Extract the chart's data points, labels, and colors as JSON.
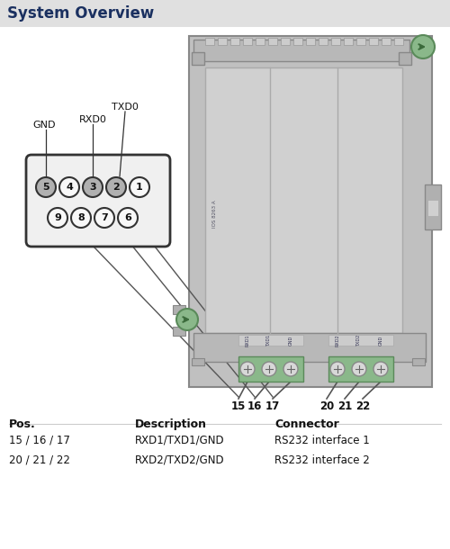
{
  "title": "System Overview",
  "title_bg": "#e0e0e0",
  "title_color": "#1a3060",
  "bg_color": "#ffffff",
  "device_gray": "#c0c0c0",
  "device_light": "#d4d4d4",
  "device_dark": "#a0a0a0",
  "device_border": "#888888",
  "green_fill": "#8ab88a",
  "green_border": "#5a8a5a",
  "green_knob": "#6a9a6a",
  "pin_top": [
    [
      "5",
      true
    ],
    [
      "4",
      false
    ],
    [
      "3",
      true
    ],
    [
      "2",
      true
    ],
    [
      "1",
      false
    ]
  ],
  "pin_bot": [
    [
      "9",
      false
    ],
    [
      "8",
      false
    ],
    [
      "7",
      false
    ],
    [
      "6",
      false
    ]
  ],
  "pin_labels_top": [
    "GND",
    "",
    "RXD0",
    "TXD0",
    ""
  ],
  "terminal_labels_1": [
    "RXD1",
    "TXD1",
    "GND"
  ],
  "terminal_labels_2": [
    "RXD2",
    "TXD2",
    "GND"
  ],
  "wire_numbers_1": [
    "15",
    "16",
    "17"
  ],
  "wire_numbers_2": [
    "20",
    "21",
    "22"
  ],
  "table_headers": [
    "Pos.",
    "Description",
    "Connector"
  ],
  "table_rows": [
    [
      "15 / 16 / 17",
      "RXD1/TXD1/GND",
      "RS232 interface 1"
    ],
    [
      "20 / 21 / 22",
      "RXD2/TXD2/GND",
      "RS232 interface 2"
    ]
  ]
}
